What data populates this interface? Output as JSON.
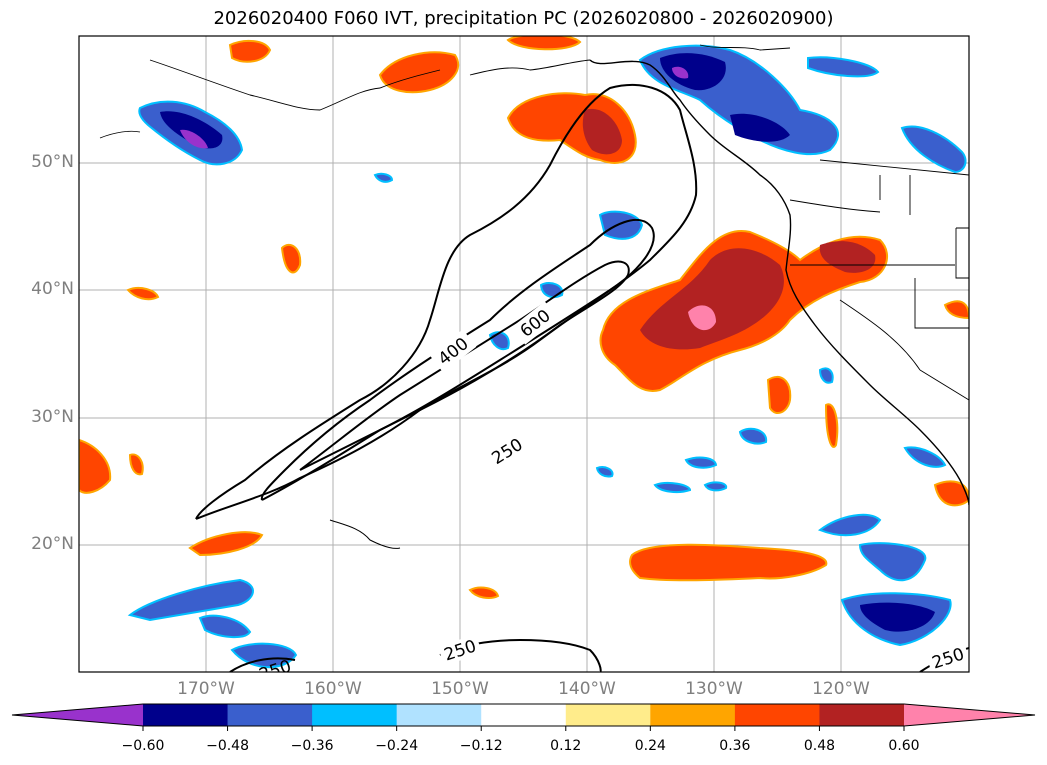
{
  "title": "2026020400 F060 IVT, precipitation PC (2026020800 - 2026020900)",
  "lat_labels": [
    "50°N",
    "40°N",
    "30°N",
    "20°N"
  ],
  "lon_labels": [
    "170°W",
    "160°W",
    "150°W",
    "140°W",
    "130°W",
    "120°W"
  ],
  "contour_labels": {
    "c400": "400",
    "c600": "600",
    "c250_center": "250",
    "c250_south": "250",
    "c250_se": "250",
    "c250_sw": "250"
  },
  "colorbar": {
    "ticks": [
      "−0.60",
      "−0.48",
      "−0.36",
      "−0.24",
      "−0.12",
      "0.12",
      "0.24",
      "0.36",
      "0.48",
      "0.60"
    ],
    "colors": [
      "#9932cc",
      "#00008b",
      "#3a5fcd",
      "#00bfff",
      "#b0e2ff",
      "#ffffff",
      "#ffec8b",
      "#ffa500",
      "#ff4500",
      "#b22222",
      "#ff82ab"
    ]
  },
  "colors": {
    "blue_dark": "#00008b",
    "blue_mid": "#3a5fcd",
    "blue_light": "#00bfff",
    "purple": "#9932cc",
    "red_orange": "#ff4500",
    "red_dark": "#b22222",
    "pink": "#ff82ab",
    "yellow": "#ffec8b",
    "orange": "#ffa500"
  }
}
